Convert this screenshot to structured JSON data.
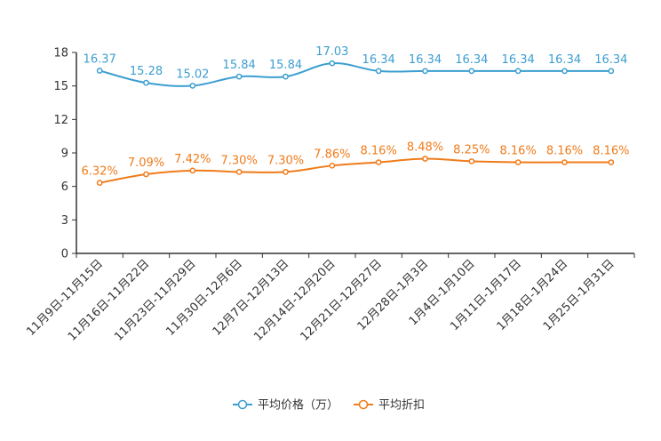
{
  "chart_data": {
    "type": "line",
    "title": "",
    "xlabel": "",
    "ylabel": "",
    "ylim": [
      0,
      18
    ],
    "yticks": [
      0,
      3,
      6,
      9,
      12,
      15,
      18
    ],
    "categories": [
      "11月9日-11月15日",
      "11月16日-11月22日",
      "11月23日-11月29日",
      "11月30日-12月6日",
      "12月7日-12月13日",
      "12月14日-12月20日",
      "12月21日-12月27日",
      "12月28日-1月3日",
      "1月4日-1月10日",
      "1月11日-1月17日",
      "1月18日-1月24日",
      "1月25日-1月31日"
    ],
    "series": [
      {
        "name": "平均价格（万）",
        "color": "#3c9ed0",
        "values": [
          16.37,
          15.28,
          15.02,
          15.84,
          15.84,
          17.03,
          16.34,
          16.34,
          16.34,
          16.34,
          16.34,
          16.34
        ],
        "labels": [
          "16.37",
          "15.28",
          "15.02",
          "15.84",
          "15.84",
          "17.03",
          "16.34",
          "16.34",
          "16.34",
          "16.34",
          "16.34",
          "16.34"
        ]
      },
      {
        "name": "平均折扣",
        "color": "#f07b1a",
        "values": [
          6.32,
          7.09,
          7.42,
          7.3,
          7.3,
          7.86,
          8.16,
          8.48,
          8.25,
          8.16,
          8.16,
          8.16
        ],
        "labels": [
          "6.32%",
          "7.09%",
          "7.42%",
          "7.30%",
          "7.30%",
          "7.86%",
          "8.16%",
          "8.48%",
          "8.25%",
          "8.16%",
          "8.16%",
          "8.16%"
        ]
      }
    ],
    "legend_position": "bottom-center",
    "grid": false
  }
}
